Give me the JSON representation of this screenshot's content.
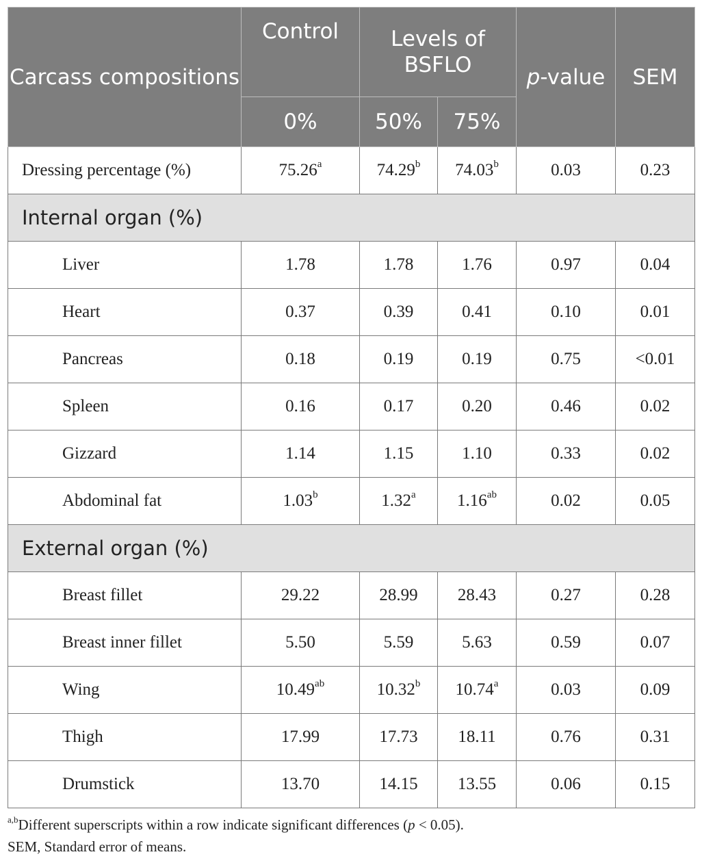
{
  "header": {
    "col1": "Carcass compositions",
    "control": "Control",
    "levels": "Levels of BSFLO",
    "p_italic": "p",
    "p_rest": "-value",
    "sem": "SEM",
    "sub_control": "0%",
    "sub_50": "50%",
    "sub_75": "75%"
  },
  "rows": {
    "dressing": {
      "label": "Dressing percentage (%)",
      "c0": "75.26",
      "c0_sup": "a",
      "c50": "74.29",
      "c50_sup": "b",
      "c75": "74.03",
      "c75_sup": "b",
      "p": "0.03",
      "sem": "0.23"
    },
    "internal_section": "Internal organ (%)",
    "liver": {
      "label": "Liver",
      "c0": "1.78",
      "c50": "1.78",
      "c75": "1.76",
      "p": "0.97",
      "sem": "0.04"
    },
    "heart": {
      "label": "Heart",
      "c0": "0.37",
      "c50": "0.39",
      "c75": "0.41",
      "p": "0.10",
      "sem": "0.01"
    },
    "pancreas": {
      "label": "Pancreas",
      "c0": "0.18",
      "c50": "0.19",
      "c75": "0.19",
      "p": "0.75",
      "sem": "<0.01"
    },
    "spleen": {
      "label": "Spleen",
      "c0": "0.16",
      "c50": "0.17",
      "c75": "0.20",
      "p": "0.46",
      "sem": "0.02"
    },
    "gizzard": {
      "label": "Gizzard",
      "c0": "1.14",
      "c50": "1.15",
      "c75": "1.10",
      "p": "0.33",
      "sem": "0.02"
    },
    "abdominal": {
      "label": "Abdominal fat",
      "c0": "1.03",
      "c0_sup": "b",
      "c50": "1.32",
      "c50_sup": "a",
      "c75": "1.16",
      "c75_sup": "ab",
      "p": "0.02",
      "sem": "0.05"
    },
    "external_section": "External organ (%)",
    "breast": {
      "label": "Breast fillet",
      "c0": "29.22",
      "c50": "28.99",
      "c75": "28.43",
      "p": "0.27",
      "sem": "0.28"
    },
    "breast_inner": {
      "label": "Breast inner fillet",
      "c0": "5.50",
      "c50": "5.59",
      "c75": "5.63",
      "p": "0.59",
      "sem": "0.07"
    },
    "wing": {
      "label": "Wing",
      "c0": "10.49",
      "c0_sup": "ab",
      "c50": "10.32",
      "c50_sup": "b",
      "c75": "10.74",
      "c75_sup": "a",
      "p": "0.03",
      "sem": "0.09"
    },
    "thigh": {
      "label": "Thigh",
      "c0": "17.99",
      "c50": "17.73",
      "c75": "18.11",
      "p": "0.76",
      "sem": "0.31"
    },
    "drumstick": {
      "label": "Drumstick",
      "c0": "13.70",
      "c50": "14.15",
      "c75": "13.55",
      "p": "0.06",
      "sem": "0.15"
    }
  },
  "footnote": {
    "sup": "a,b",
    "text1": "Different superscripts within a row indicate significant differences (",
    "p_italic": "p",
    "text2": " < 0.05).",
    "line2": "SEM, Standard error of means."
  }
}
